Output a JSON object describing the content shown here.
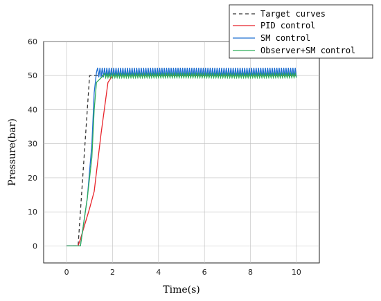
{
  "chart_data": {
    "type": "line",
    "title": "",
    "xlabel": "Time(s)",
    "ylabel": "Pressure(bar)",
    "xlim": [
      -1,
      11
    ],
    "ylim": [
      -5,
      60
    ],
    "xticks": [
      0,
      2,
      4,
      6,
      8,
      10
    ],
    "yticks": [
      0,
      10,
      20,
      30,
      40,
      50,
      60
    ],
    "grid": true,
    "legend_position": "top-right",
    "series": [
      {
        "name": "Target curves",
        "color": "#333333",
        "style": "dashed",
        "x": [
          0,
          0.5,
          1.0,
          10
        ],
        "y": [
          0,
          0,
          50,
          50
        ]
      },
      {
        "name": "PID control",
        "color": "#e8232a",
        "style": "solid",
        "x": [
          0,
          0.5,
          0.6,
          1.0,
          1.2,
          1.5,
          1.8,
          2.0,
          10
        ],
        "y": [
          0,
          0,
          2,
          11,
          16,
          33,
          48,
          50,
          50
        ]
      },
      {
        "name": "SM control",
        "color": "#1f6fd1",
        "style": "solid",
        "x": [
          0,
          0.6,
          0.9,
          1.1,
          1.2,
          1.3,
          10
        ],
        "y": [
          0,
          0,
          14,
          30,
          45,
          51,
          51
        ],
        "oscillation_band": [
          49.5,
          52.3
        ],
        "oscillation_start": 1.3
      },
      {
        "name": "Observer+SM control",
        "color": "#2fae5a",
        "style": "solid",
        "x": [
          0,
          0.6,
          0.9,
          1.1,
          1.2,
          1.3,
          1.6,
          10
        ],
        "y": [
          0,
          0,
          14,
          26,
          40,
          48,
          50,
          50
        ],
        "oscillation_band": [
          49.4,
          50.6
        ],
        "oscillation_start": 1.6
      }
    ]
  }
}
